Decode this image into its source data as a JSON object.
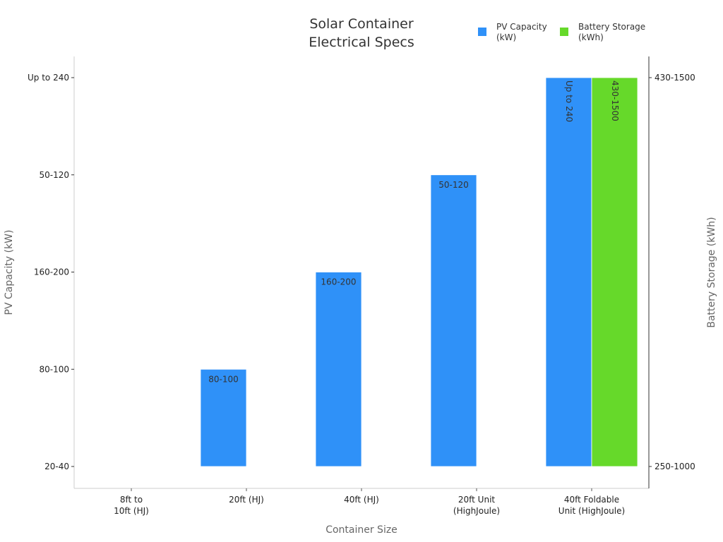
{
  "chart_data": {
    "type": "bar",
    "title": [
      "Solar Container",
      "Electrical Specs"
    ],
    "xlabel": "Container Size",
    "ylabel": "PV Capacity (kW)",
    "y2label": "Battery Storage (kWh)",
    "categories": [
      [
        "8ft to",
        "10ft (HJ)"
      ],
      [
        "20ft (HJ)"
      ],
      [
        "40ft (HJ)"
      ],
      [
        "20ft Unit",
        "(HighJoule)"
      ],
      [
        "40ft Foldable",
        "Unit (HighJoule)"
      ]
    ],
    "y_ticks": [
      "20-40",
      "80-100",
      "160-200",
      "50-120",
      "Up to 240"
    ],
    "y2_ticks": [
      "250-1000",
      "430-1500"
    ],
    "legend_placement": "top-right",
    "grid": false,
    "series": [
      {
        "name": "PV Capacity (kW)",
        "legend": [
          "PV Capacity",
          "(kW)"
        ],
        "color": "#2f91f8",
        "axis": "left",
        "values": [
          "20-40",
          "80-100",
          "160-200",
          "50-120",
          "Up to 240"
        ],
        "label_shown": [
          false,
          true,
          true,
          true,
          true
        ]
      },
      {
        "name": "Battery Storage (kWh)",
        "legend": [
          "Battery Storage",
          "(kWh)"
        ],
        "color": "#66d92a",
        "axis": "right",
        "values": [
          "250-1000",
          null,
          null,
          null,
          "430-1500"
        ],
        "label_shown": [
          false,
          false,
          false,
          false,
          true
        ]
      }
    ]
  }
}
